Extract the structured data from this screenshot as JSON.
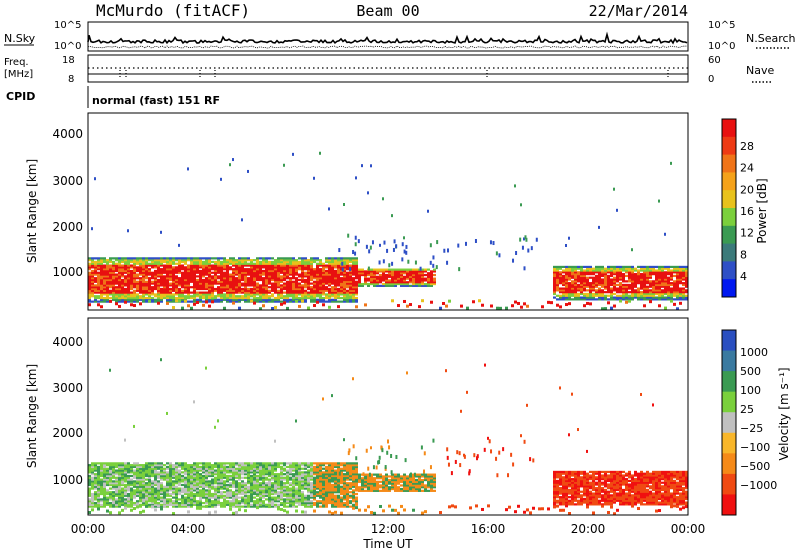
{
  "header": {
    "station": "McMurdo (fitACF)",
    "beam": "Beam 00",
    "date": "22/Mar/2014"
  },
  "noise_panel": {
    "left_label": "N.Sky",
    "right_label": "N.Search",
    "ticks": [
      "10^5",
      "10^0"
    ],
    "right_ticks": [
      "10^5",
      "10^0"
    ]
  },
  "freq_panel": {
    "left_label_1": "Freq.",
    "left_label_2": "[MHz]",
    "left_ticks": [
      "18",
      "8"
    ],
    "right_label": "Nave",
    "right_ticks": [
      "60",
      "0"
    ]
  },
  "cpid_panel": {
    "label": "CPID",
    "text": "normal (fast) 151 RF"
  },
  "colors": {
    "power": [
      "#0018f0",
      "#2e4fc6",
      "#3b7a7a",
      "#3a9a52",
      "#7bcf3c",
      "#e8c21c",
      "#f5a21a",
      "#f07418",
      "#ee3a14",
      "#e81010"
    ],
    "velocity": [
      "#f01010",
      "#f04a12",
      "#f58a18",
      "#f8b62a",
      "#c0c0c0",
      "#7ad03c",
      "#3a9a52",
      "#3a7aa0",
      "#2a4fc0"
    ]
  },
  "chart_data": [
    {
      "type": "heatmap",
      "name_panel": "power",
      "ylabel": "Slant Range [km]",
      "yticks": [
        "4000",
        "3000",
        "2000",
        "1000"
      ],
      "ylim": [
        180,
        4550
      ],
      "xlim": [
        0,
        24
      ],
      "colorbar_label": "Power [dB]",
      "colorbar_ticks": [
        "28",
        "24",
        "20",
        "16",
        "12",
        "8",
        "4"
      ]
    },
    {
      "type": "heatmap",
      "name_panel": "velocity",
      "ylabel": "Slant Range [km]",
      "yticks": [
        "4000",
        "3000",
        "2000",
        "1000"
      ],
      "ylim": [
        180,
        4550
      ],
      "xlim": [
        0,
        24
      ],
      "colorbar_label": "Velocity [m s⁻¹]",
      "colorbar_ticks": [
        "1000",
        "500",
        "100",
        "25",
        "−25",
        "−100",
        "−500",
        "−1000"
      ]
    }
  ],
  "xaxis": {
    "ticks": [
      "00:00",
      "04:00",
      "08:00",
      "12:00",
      "16:00",
      "20:00",
      "00:00"
    ],
    "label": "Time UT"
  }
}
